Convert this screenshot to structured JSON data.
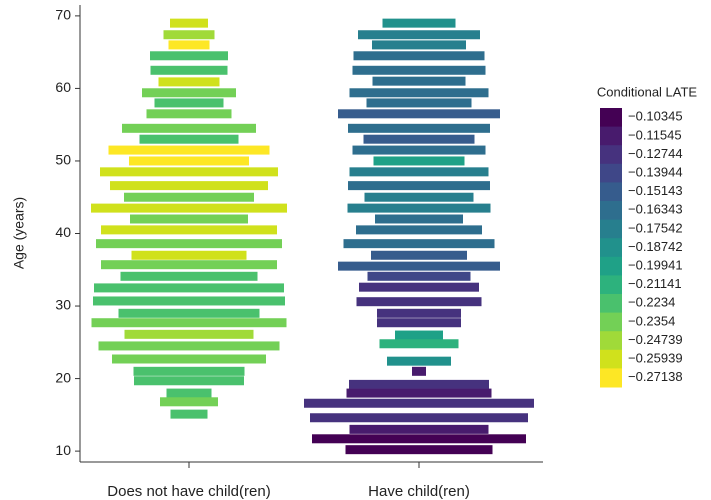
{
  "chart_data": {
    "type": "violin-bar",
    "y_label": "Age (years)",
    "ylim": [
      8.5,
      71.5
    ],
    "yticks": [
      10,
      20,
      30,
      40,
      50,
      60,
      70
    ],
    "groups": [
      {
        "name": "Does not have child(ren)",
        "ages": [
          69,
          67.4,
          66,
          64.5,
          62.5,
          60.9,
          59.4,
          58,
          56.5,
          54.5,
          53,
          51.5,
          50,
          48.5,
          46.6,
          45,
          43.5,
          42,
          40.5,
          38.6,
          37,
          35.7,
          34.1,
          32.5,
          30.7,
          29,
          27.7,
          26.1,
          24.5,
          22.7,
          21,
          19.7,
          18,
          16.8,
          15.1
        ],
        "widths": [
          38,
          51,
          41,
          78,
          77,
          61,
          94,
          69,
          85,
          134,
          99,
          161,
          120,
          178,
          158,
          130,
          196,
          118,
          176,
          186,
          115,
          176,
          137,
          190,
          192,
          141,
          195,
          129,
          181,
          154,
          111,
          110,
          45,
          58,
          37
        ],
        "values": [
          -0.25939,
          -0.24739,
          -0.27138,
          -0.2234,
          -0.2234,
          -0.25939,
          -0.2354,
          -0.2234,
          -0.2354,
          -0.2354,
          -0.2234,
          -0.27138,
          -0.27138,
          -0.25939,
          -0.25939,
          -0.2354,
          -0.25939,
          -0.2354,
          -0.25939,
          -0.2354,
          -0.25939,
          -0.2354,
          -0.2234,
          -0.2234,
          -0.2234,
          -0.2234,
          -0.2354,
          -0.24739,
          -0.2354,
          -0.2354,
          -0.2234,
          -0.2234,
          -0.2234,
          -0.2354,
          -0.2234
        ]
      },
      {
        "name": "Have child(ren)",
        "ages": [
          69,
          67.4,
          66,
          64.5,
          62.5,
          61,
          59.4,
          58,
          56.5,
          54.5,
          53,
          51.5,
          50,
          48.5,
          46.6,
          45,
          43.5,
          42,
          40.5,
          38.6,
          37,
          35.5,
          34.1,
          32.6,
          30.6,
          29,
          27.7,
          26,
          24.8,
          22.4,
          21,
          19.2,
          18,
          16.6,
          14.6,
          13,
          11.7,
          10.2
        ],
        "widths": [
          73,
          122,
          94,
          131,
          133,
          93,
          139,
          105,
          162,
          142,
          111,
          133,
          91,
          139,
          142,
          109,
          143,
          88,
          126,
          151,
          96,
          162,
          103,
          120,
          125,
          84,
          84,
          48,
          79,
          64,
          14,
          140,
          145,
          230,
          218,
          139,
          214,
          147
        ],
        "values": [
          -0.18742,
          -0.17542,
          -0.17542,
          -0.16343,
          -0.16343,
          -0.16343,
          -0.16343,
          -0.16343,
          -0.15143,
          -0.16343,
          -0.15143,
          -0.16343,
          -0.19941,
          -0.17542,
          -0.16343,
          -0.17542,
          -0.17542,
          -0.16343,
          -0.16343,
          -0.16343,
          -0.15143,
          -0.15143,
          -0.13944,
          -0.12744,
          -0.12744,
          -0.12744,
          -0.12744,
          -0.19941,
          -0.21141,
          -0.18742,
          -0.11545,
          -0.12744,
          -0.11545,
          -0.12744,
          -0.12744,
          -0.11545,
          -0.10345,
          -0.10345
        ]
      }
    ],
    "colorbar": {
      "title": "Conditional LATE",
      "levels": [
        {
          "value": -0.10345,
          "label": "−0.10345"
        },
        {
          "value": -0.11545,
          "label": "−0.11545"
        },
        {
          "value": -0.12744,
          "label": "−0.12744"
        },
        {
          "value": -0.13944,
          "label": "−0.13944"
        },
        {
          "value": -0.15143,
          "label": "−0.15143"
        },
        {
          "value": -0.16343,
          "label": "−0.16343"
        },
        {
          "value": -0.17542,
          "label": "−0.17542"
        },
        {
          "value": -0.18742,
          "label": "−0.18742"
        },
        {
          "value": -0.19941,
          "label": "−0.19941"
        },
        {
          "value": -0.21141,
          "label": "−0.21141"
        },
        {
          "value": -0.2234,
          "label": "−0.2234"
        },
        {
          "value": -0.2354,
          "label": "−0.2354"
        },
        {
          "value": -0.24739,
          "label": "−0.24739"
        },
        {
          "value": -0.25939,
          "label": "−0.25939"
        },
        {
          "value": -0.27138,
          "label": "−0.27138"
        }
      ],
      "colors": [
        "#440154",
        "#481b6d",
        "#46327e",
        "#3f4788",
        "#365c8d",
        "#2e6e8e",
        "#277f8e",
        "#21918c",
        "#1fa187",
        "#2db27d",
        "#4ac16d",
        "#73d056",
        "#a0da39",
        "#d0e11c",
        "#fde725"
      ]
    }
  }
}
